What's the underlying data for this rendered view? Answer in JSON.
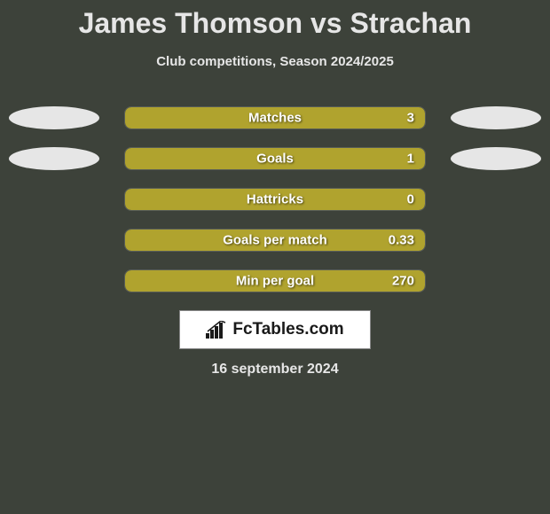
{
  "title": "James Thomson vs Strachan",
  "subtitle": "Club competitions, Season 2024/2025",
  "colors": {
    "background": "#3d423a",
    "text": "#e6e6e6",
    "bar_fill": "#b0a32e",
    "bar_border": "#ffffff",
    "ellipse": "#e6e6e6"
  },
  "stats": [
    {
      "label": "Matches",
      "value": "3",
      "fill_pct": 100,
      "show_left_ellipse": true,
      "show_right_ellipse": true
    },
    {
      "label": "Goals",
      "value": "1",
      "fill_pct": 100,
      "show_left_ellipse": true,
      "show_right_ellipse": true
    },
    {
      "label": "Hattricks",
      "value": "0",
      "fill_pct": 100,
      "show_left_ellipse": false,
      "show_right_ellipse": false
    },
    {
      "label": "Goals per match",
      "value": "0.33",
      "fill_pct": 100,
      "show_left_ellipse": false,
      "show_right_ellipse": false
    },
    {
      "label": "Min per goal",
      "value": "270",
      "fill_pct": 100,
      "show_left_ellipse": false,
      "show_right_ellipse": false
    }
  ],
  "logo": {
    "text": "FcTables.com"
  },
  "date": "16 september 2024",
  "typography": {
    "title_fontsize": 32,
    "subtitle_fontsize": 15,
    "stat_fontsize": 15,
    "date_fontsize": 16
  }
}
